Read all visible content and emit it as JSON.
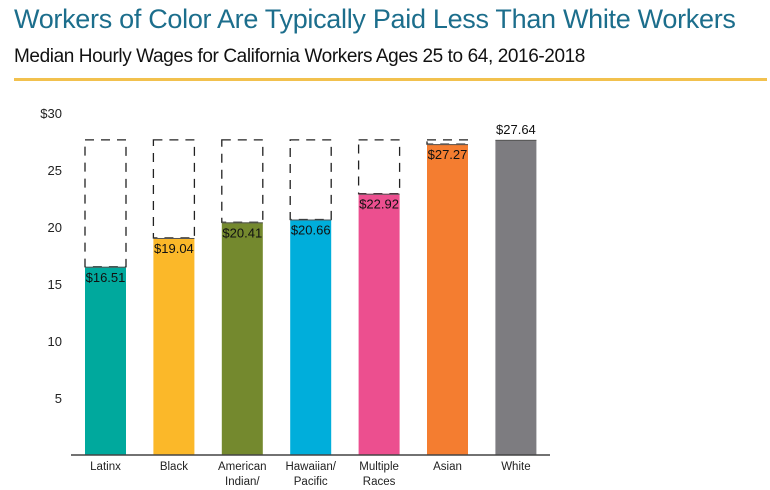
{
  "title": "Workers of Color Are Typically Paid Less Than White Workers",
  "subtitle": "Median Hourly Wages for California Workers Ages 25 to 64, 2016-2018",
  "chart_data": {
    "type": "bar",
    "title": "Workers of Color Are Typically Paid Less Than White Workers",
    "subtitle": "Median Hourly Wages for California Workers Ages 25 to 64, 2016-2018",
    "xlabel": "",
    "ylabel": "",
    "ylim": [
      0,
      30
    ],
    "yticks": [
      5,
      10,
      15,
      20,
      25,
      30
    ],
    "ytick_labels": [
      "5",
      "10",
      "15",
      "20",
      "25",
      "$30"
    ],
    "categories": [
      [
        "Latinx"
      ],
      [
        "Black"
      ],
      [
        "American",
        "Indian/"
      ],
      [
        "Hawaiian/",
        "Pacific"
      ],
      [
        "Multiple",
        "Races"
      ],
      [
        "Asian"
      ],
      [
        "White"
      ]
    ],
    "values": [
      16.51,
      19.04,
      20.41,
      20.66,
      22.92,
      27.27,
      27.64
    ],
    "value_labels": [
      "$16.51",
      "$19.04",
      "$20.41",
      "$20.66",
      "$22.92",
      "$27.27",
      "$27.64"
    ],
    "colors": [
      "#00a99d",
      "#fbb829",
      "#74892e",
      "#00aedb",
      "#ec4f8f",
      "#f47d30",
      "#7d7c80"
    ],
    "reference_value": 27.64,
    "reference_style": "dashed outline to White wage",
    "grid": false
  }
}
